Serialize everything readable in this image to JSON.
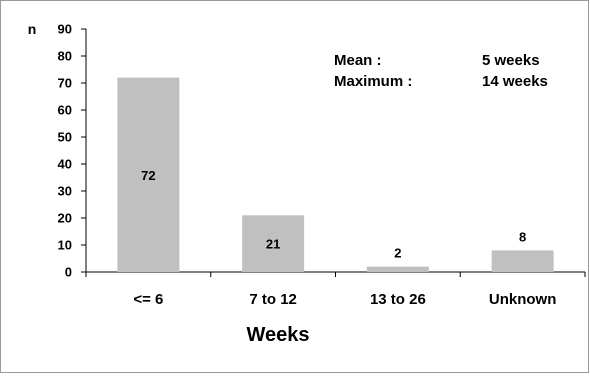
{
  "chart_data": {
    "type": "bar",
    "categories": [
      "<= 6",
      "7 to 12",
      "13 to 26",
      "Unknown"
    ],
    "values": [
      72,
      21,
      2,
      8
    ],
    "data_labels": [
      "72",
      "21",
      "2",
      "8"
    ],
    "title": "",
    "xlabel": "Weeks",
    "ylabel": "n",
    "ylim": [
      0,
      90
    ],
    "yticks": [
      0,
      10,
      20,
      30,
      40,
      50,
      60,
      70,
      80,
      90
    ],
    "grid": false,
    "legend": "none",
    "bar_color": "#c0c0c0",
    "annotations": [
      {
        "label": "Mean :",
        "value": "5 weeks"
      },
      {
        "label": "Maximum :",
        "value": "14 weeks"
      }
    ]
  }
}
